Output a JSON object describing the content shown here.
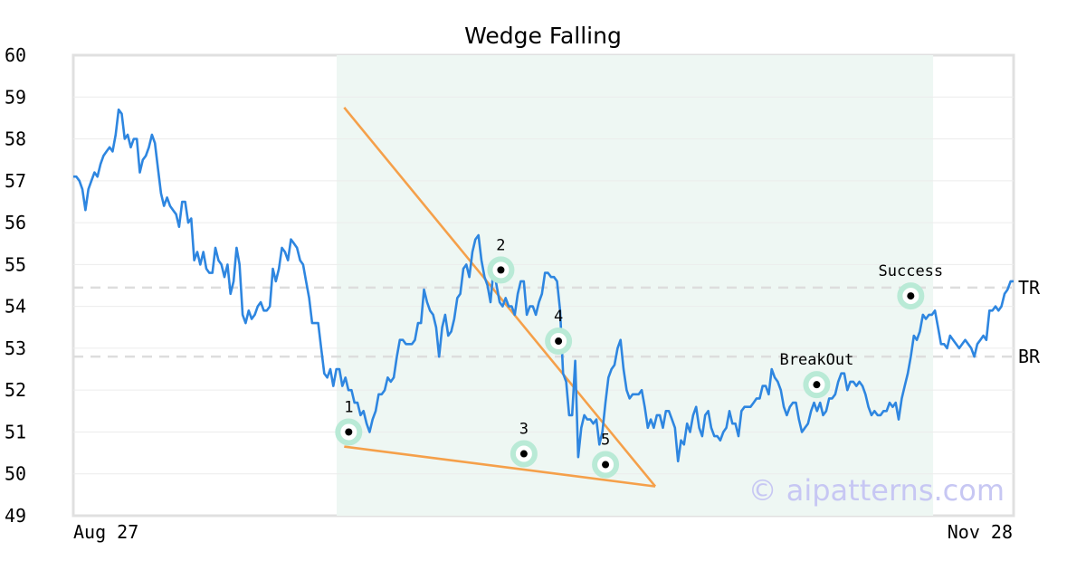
{
  "chart_data": {
    "type": "line",
    "title": "Wedge Falling",
    "ylim": [
      49,
      60
    ],
    "y_ticks": [
      "49",
      "50",
      "51",
      "52",
      "53",
      "54",
      "55",
      "56",
      "57",
      "58",
      "59",
      "60"
    ],
    "x_tick_labels": [
      "Aug 27",
      "Nov 28"
    ],
    "grid": true,
    "pattern_shaded": true,
    "colors": {
      "price": "#2e86e0",
      "trendline": "#f5a04a",
      "shade": "#eef7f3",
      "marker_halo": "#b9ead6",
      "level": "#dddddd"
    },
    "series": [
      {
        "values": [
          57.1,
          57.1,
          57.0,
          56.8,
          56.3,
          56.8,
          57.0,
          57.2,
          57.1,
          57.4,
          57.6,
          57.7,
          57.8,
          57.7,
          58.1,
          58.7,
          58.6,
          58.0,
          58.1,
          57.8,
          58.0,
          58.0,
          57.2,
          57.5,
          57.6,
          57.8,
          58.1,
          57.9,
          57.3,
          56.7,
          56.4,
          56.6,
          56.4,
          56.3,
          56.2,
          55.9,
          56.5,
          56.5,
          56.0,
          56.1,
          55.1,
          55.3,
          55.0,
          55.3,
          54.9,
          54.8,
          54.8,
          55.4,
          55.1,
          55.0,
          54.7,
          55.0,
          54.3,
          54.6,
          55.4,
          55.0,
          53.8,
          53.6,
          53.9,
          53.7,
          53.8,
          54.0,
          54.1,
          53.9,
          53.9,
          54.0,
          54.9,
          54.6,
          54.9,
          55.4,
          55.3,
          55.1,
          55.6,
          55.5,
          55.4,
          55.1,
          55.0,
          54.6,
          54.2,
          53.6,
          53.6,
          53.6,
          53.0,
          52.4,
          52.3,
          52.5,
          52.1,
          52.5,
          52.5,
          52.1,
          52.3,
          52.0,
          52.0,
          51.7,
          51.7,
          51.4,
          51.5,
          51.2,
          51.0,
          51.3,
          51.5,
          51.9,
          51.9,
          52.0,
          52.3,
          52.2,
          52.3,
          52.8,
          53.2,
          53.2,
          53.1,
          53.1,
          53.1,
          53.2,
          53.6,
          53.6,
          54.4,
          54.1,
          53.9,
          53.8,
          53.5,
          52.8,
          53.5,
          53.8,
          53.3,
          53.4,
          53.7,
          54.2,
          54.3,
          54.9,
          55.0,
          54.7,
          55.3,
          55.6,
          55.7,
          55.1,
          54.7,
          54.5,
          54.1,
          54.9,
          54.5,
          54.1,
          54.0,
          54.2,
          54.0,
          54.0,
          53.8,
          54.3,
          54.6,
          54.6,
          53.8,
          54.0,
          54.0,
          53.8,
          54.1,
          54.3,
          54.8,
          54.8,
          54.7,
          54.7,
          54.6,
          53.9,
          52.4,
          52.2,
          51.4,
          51.4,
          52.7,
          50.4,
          51.1,
          51.4,
          51.3,
          51.3,
          51.2,
          51.3,
          50.7,
          51.0,
          51.7,
          52.3,
          52.5,
          52.6,
          53.0,
          53.2,
          52.5,
          52.0,
          51.8,
          51.9,
          51.9,
          51.9,
          52.0,
          51.6,
          51.1,
          51.3,
          51.1,
          51.4,
          51.4,
          51.1,
          51.5,
          51.5,
          51.3,
          51.1,
          50.3,
          50.8,
          50.7,
          51.2,
          51.0,
          51.4,
          51.6,
          51.1,
          50.9,
          51.4,
          51.5,
          51.1,
          50.9,
          50.9,
          50.8,
          51.0,
          51.1,
          51.5,
          51.2,
          51.2,
          50.9,
          51.5,
          51.6,
          51.6,
          51.6,
          51.7,
          51.8,
          51.8,
          52.1,
          52.1,
          51.9,
          52.5,
          52.3,
          52.2,
          52.0,
          51.6,
          51.4,
          51.6,
          51.7,
          51.7,
          51.3,
          51.0,
          51.1,
          51.2,
          51.5,
          51.7,
          51.5,
          51.7,
          51.4,
          51.5,
          51.8,
          51.8,
          51.9,
          52.2,
          52.4,
          52.4,
          52.0,
          52.2,
          52.2,
          52.1,
          52.2,
          52.1,
          51.9,
          51.6,
          51.4,
          51.5,
          51.4,
          51.4,
          51.5,
          51.5,
          51.7,
          51.6,
          51.7,
          51.3,
          51.8,
          52.1,
          52.4,
          52.8,
          53.3,
          53.2,
          53.4,
          53.8,
          53.7,
          53.8,
          53.8,
          53.9,
          53.5,
          53.1,
          53.1,
          53.0,
          53.3,
          53.2,
          53.1,
          53.0,
          53.1,
          53.2,
          53.1,
          53.0,
          52.8,
          53.1,
          53.2,
          53.3,
          53.2,
          53.9,
          53.9,
          54.0,
          53.9,
          54.0,
          54.3,
          54.4,
          54.6,
          54.6
        ]
      }
    ],
    "trendlines": [
      {
        "points": [
          [
            0.2881,
            58.75
          ],
          [
            0.6189,
            49.7
          ]
        ]
      },
      {
        "points": [
          [
            0.2881,
            50.65
          ],
          [
            0.6189,
            49.7
          ]
        ]
      }
    ],
    "pattern_range": [
      0.2801,
      0.9144
    ],
    "points": [
      {
        "label": "1",
        "x": 0.2929,
        "y": 51.0
      },
      {
        "label": "2",
        "x": 0.4547,
        "y": 54.87
      },
      {
        "label": "3",
        "x": 0.4792,
        "y": 50.48
      },
      {
        "label": "4",
        "x": 0.516,
        "y": 53.17
      },
      {
        "label": "5",
        "x": 0.566,
        "y": 50.22
      },
      {
        "label": "BreakOut",
        "x": 0.7906,
        "y": 52.13
      },
      {
        "label": "Success",
        "x": 0.8906,
        "y": 54.25
      }
    ],
    "levels": [
      {
        "label": "TR",
        "y": 54.45
      },
      {
        "label": "BR",
        "y": 52.8
      }
    ],
    "watermark": "© aipatterns.com"
  }
}
